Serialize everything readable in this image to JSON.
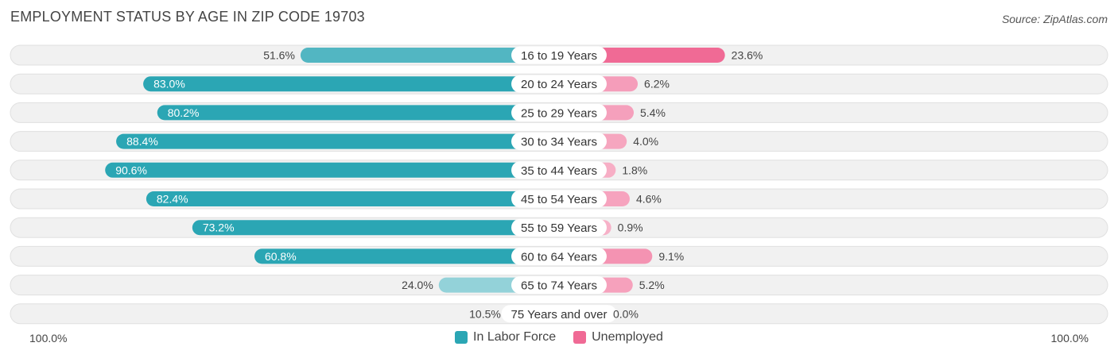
{
  "title": "EMPLOYMENT STATUS BY AGE IN ZIP CODE 19703",
  "source": "Source: ZipAtlas.com",
  "axis": {
    "left_label": "100.0%",
    "right_label": "100.0%"
  },
  "legend": [
    {
      "label": "In Labor Force",
      "color": "#2ba6b4"
    },
    {
      "label": "Unemployed",
      "color": "#f06a95"
    }
  ],
  "chart_data": {
    "type": "bar",
    "orientation": "horizontal-diverging",
    "categories": [
      "16 to 19 Years",
      "20 to 24 Years",
      "25 to 29 Years",
      "30 to 34 Years",
      "35 to 44 Years",
      "45 to 54 Years",
      "55 to 59 Years",
      "60 to 64 Years",
      "65 to 74 Years",
      "75 Years and over"
    ],
    "series": [
      {
        "name": "In Labor Force",
        "side": "left",
        "values": [
          51.6,
          83.0,
          80.2,
          88.4,
          90.6,
          82.4,
          73.2,
          60.8,
          24.0,
          10.5
        ],
        "labels": [
          "51.6%",
          "83.0%",
          "80.2%",
          "88.4%",
          "90.6%",
          "82.4%",
          "73.2%",
          "60.8%",
          "24.0%",
          "10.5%"
        ]
      },
      {
        "name": "Unemployed",
        "side": "right",
        "values": [
          23.6,
          6.2,
          5.4,
          4.0,
          1.8,
          4.6,
          0.9,
          9.1,
          5.2,
          0.0
        ],
        "labels": [
          "23.6%",
          "6.2%",
          "5.4%",
          "4.0%",
          "1.8%",
          "4.6%",
          "0.9%",
          "9.1%",
          "5.2%",
          "0.0%"
        ]
      }
    ],
    "xlim": [
      -100,
      100
    ]
  }
}
